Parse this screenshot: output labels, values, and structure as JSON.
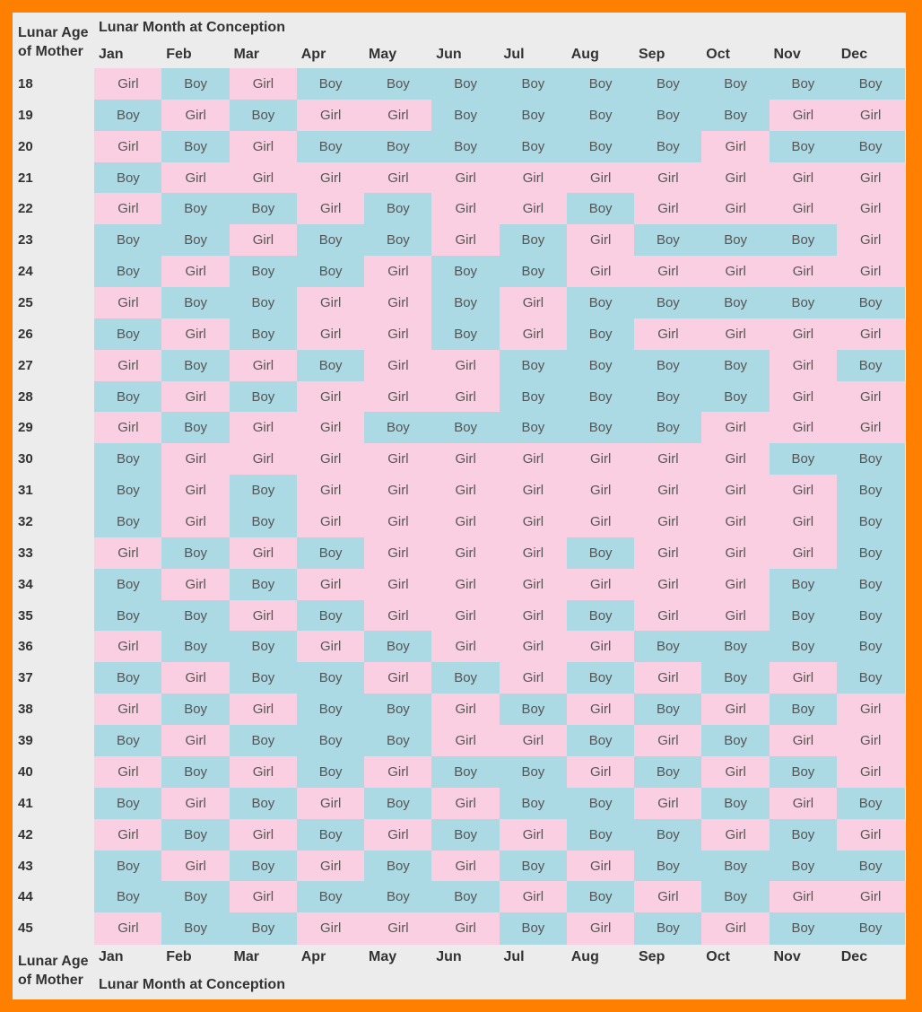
{
  "header": {
    "corner": "Lunar Age of Mother",
    "title": "Lunar Month at Conception",
    "months": [
      "Jan",
      "Feb",
      "Mar",
      "Apr",
      "May",
      "Jun",
      "Jul",
      "Aug",
      "Sep",
      "Oct",
      "Nov",
      "Dec"
    ]
  },
  "table": {
    "colors": {
      "Girl": "#fbcfe2",
      "Boy": "#abd9e4"
    },
    "rows": [
      {
        "age": 18,
        "cells": [
          "Girl",
          "Boy",
          "Girl",
          "Boy",
          "Boy",
          "Boy",
          "Boy",
          "Boy",
          "Boy",
          "Boy",
          "Boy",
          "Boy"
        ]
      },
      {
        "age": 19,
        "cells": [
          "Boy",
          "Girl",
          "Boy",
          "Girl",
          "Girl",
          "Boy",
          "Boy",
          "Boy",
          "Boy",
          "Boy",
          "Girl",
          "Girl"
        ]
      },
      {
        "age": 20,
        "cells": [
          "Girl",
          "Boy",
          "Girl",
          "Boy",
          "Boy",
          "Boy",
          "Boy",
          "Boy",
          "Boy",
          "Girl",
          "Boy",
          "Boy"
        ]
      },
      {
        "age": 21,
        "cells": [
          "Boy",
          "Girl",
          "Girl",
          "Girl",
          "Girl",
          "Girl",
          "Girl",
          "Girl",
          "Girl",
          "Girl",
          "Girl",
          "Girl"
        ]
      },
      {
        "age": 22,
        "cells": [
          "Girl",
          "Boy",
          "Boy",
          "Girl",
          "Boy",
          "Girl",
          "Girl",
          "Boy",
          "Girl",
          "Girl",
          "Girl",
          "Girl"
        ]
      },
      {
        "age": 23,
        "cells": [
          "Boy",
          "Boy",
          "Girl",
          "Boy",
          "Boy",
          "Girl",
          "Boy",
          "Girl",
          "Boy",
          "Boy",
          "Boy",
          "Girl"
        ]
      },
      {
        "age": 24,
        "cells": [
          "Boy",
          "Girl",
          "Boy",
          "Boy",
          "Girl",
          "Boy",
          "Boy",
          "Girl",
          "Girl",
          "Girl",
          "Girl",
          "Girl"
        ]
      },
      {
        "age": 25,
        "cells": [
          "Girl",
          "Boy",
          "Boy",
          "Girl",
          "Girl",
          "Boy",
          "Girl",
          "Boy",
          "Boy",
          "Boy",
          "Boy",
          "Boy"
        ]
      },
      {
        "age": 26,
        "cells": [
          "Boy",
          "Girl",
          "Boy",
          "Girl",
          "Girl",
          "Boy",
          "Girl",
          "Boy",
          "Girl",
          "Girl",
          "Girl",
          "Girl"
        ]
      },
      {
        "age": 27,
        "cells": [
          "Girl",
          "Boy",
          "Girl",
          "Boy",
          "Girl",
          "Girl",
          "Boy",
          "Boy",
          "Boy",
          "Boy",
          "Girl",
          "Boy"
        ]
      },
      {
        "age": 28,
        "cells": [
          "Boy",
          "Girl",
          "Boy",
          "Girl",
          "Girl",
          "Girl",
          "Boy",
          "Boy",
          "Boy",
          "Boy",
          "Girl",
          "Girl"
        ]
      },
      {
        "age": 29,
        "cells": [
          "Girl",
          "Boy",
          "Girl",
          "Girl",
          "Boy",
          "Boy",
          "Boy",
          "Boy",
          "Boy",
          "Girl",
          "Girl",
          "Girl"
        ]
      },
      {
        "age": 30,
        "cells": [
          "Boy",
          "Girl",
          "Girl",
          "Girl",
          "Girl",
          "Girl",
          "Girl",
          "Girl",
          "Girl",
          "Girl",
          "Boy",
          "Boy"
        ]
      },
      {
        "age": 31,
        "cells": [
          "Boy",
          "Girl",
          "Boy",
          "Girl",
          "Girl",
          "Girl",
          "Girl",
          "Girl",
          "Girl",
          "Girl",
          "Girl",
          "Boy"
        ]
      },
      {
        "age": 32,
        "cells": [
          "Boy",
          "Girl",
          "Boy",
          "Girl",
          "Girl",
          "Girl",
          "Girl",
          "Girl",
          "Girl",
          "Girl",
          "Girl",
          "Boy"
        ]
      },
      {
        "age": 33,
        "cells": [
          "Girl",
          "Boy",
          "Girl",
          "Boy",
          "Girl",
          "Girl",
          "Girl",
          "Boy",
          "Girl",
          "Girl",
          "Girl",
          "Boy"
        ]
      },
      {
        "age": 34,
        "cells": [
          "Boy",
          "Girl",
          "Boy",
          "Girl",
          "Girl",
          "Girl",
          "Girl",
          "Girl",
          "Girl",
          "Girl",
          "Boy",
          "Boy"
        ]
      },
      {
        "age": 35,
        "cells": [
          "Boy",
          "Boy",
          "Girl",
          "Boy",
          "Girl",
          "Girl",
          "Girl",
          "Boy",
          "Girl",
          "Girl",
          "Boy",
          "Boy"
        ]
      },
      {
        "age": 36,
        "cells": [
          "Girl",
          "Boy",
          "Boy",
          "Girl",
          "Boy",
          "Girl",
          "Girl",
          "Girl",
          "Boy",
          "Boy",
          "Boy",
          "Boy"
        ]
      },
      {
        "age": 37,
        "cells": [
          "Boy",
          "Girl",
          "Boy",
          "Boy",
          "Girl",
          "Boy",
          "Girl",
          "Boy",
          "Girl",
          "Boy",
          "Girl",
          "Boy"
        ]
      },
      {
        "age": 38,
        "cells": [
          "Girl",
          "Boy",
          "Girl",
          "Boy",
          "Boy",
          "Girl",
          "Boy",
          "Girl",
          "Boy",
          "Girl",
          "Boy",
          "Girl"
        ]
      },
      {
        "age": 39,
        "cells": [
          "Boy",
          "Girl",
          "Boy",
          "Boy",
          "Boy",
          "Girl",
          "Girl",
          "Boy",
          "Girl",
          "Boy",
          "Girl",
          "Girl"
        ]
      },
      {
        "age": 40,
        "cells": [
          "Girl",
          "Boy",
          "Girl",
          "Boy",
          "Girl",
          "Boy",
          "Boy",
          "Girl",
          "Boy",
          "Girl",
          "Boy",
          "Girl"
        ]
      },
      {
        "age": 41,
        "cells": [
          "Boy",
          "Girl",
          "Boy",
          "Girl",
          "Boy",
          "Girl",
          "Boy",
          "Boy",
          "Girl",
          "Boy",
          "Girl",
          "Boy"
        ]
      },
      {
        "age": 42,
        "cells": [
          "Girl",
          "Boy",
          "Girl",
          "Boy",
          "Girl",
          "Boy",
          "Girl",
          "Boy",
          "Boy",
          "Girl",
          "Boy",
          "Girl"
        ]
      },
      {
        "age": 43,
        "cells": [
          "Boy",
          "Girl",
          "Boy",
          "Girl",
          "Boy",
          "Girl",
          "Boy",
          "Girl",
          "Boy",
          "Boy",
          "Boy",
          "Boy"
        ]
      },
      {
        "age": 44,
        "cells": [
          "Boy",
          "Boy",
          "Girl",
          "Boy",
          "Boy",
          "Boy",
          "Girl",
          "Boy",
          "Girl",
          "Boy",
          "Girl",
          "Girl"
        ]
      },
      {
        "age": 45,
        "cells": [
          "Girl",
          "Boy",
          "Boy",
          "Girl",
          "Girl",
          "Girl",
          "Boy",
          "Girl",
          "Boy",
          "Girl",
          "Boy",
          "Boy"
        ]
      }
    ]
  },
  "footer": {
    "corner": "Lunar Age of Mother",
    "title": "Lunar Month at Conception",
    "months": [
      "Jan",
      "Feb",
      "Mar",
      "Apr",
      "May",
      "Jun",
      "Jul",
      "Aug",
      "Sep",
      "Oct",
      "Nov",
      "Dec"
    ]
  }
}
